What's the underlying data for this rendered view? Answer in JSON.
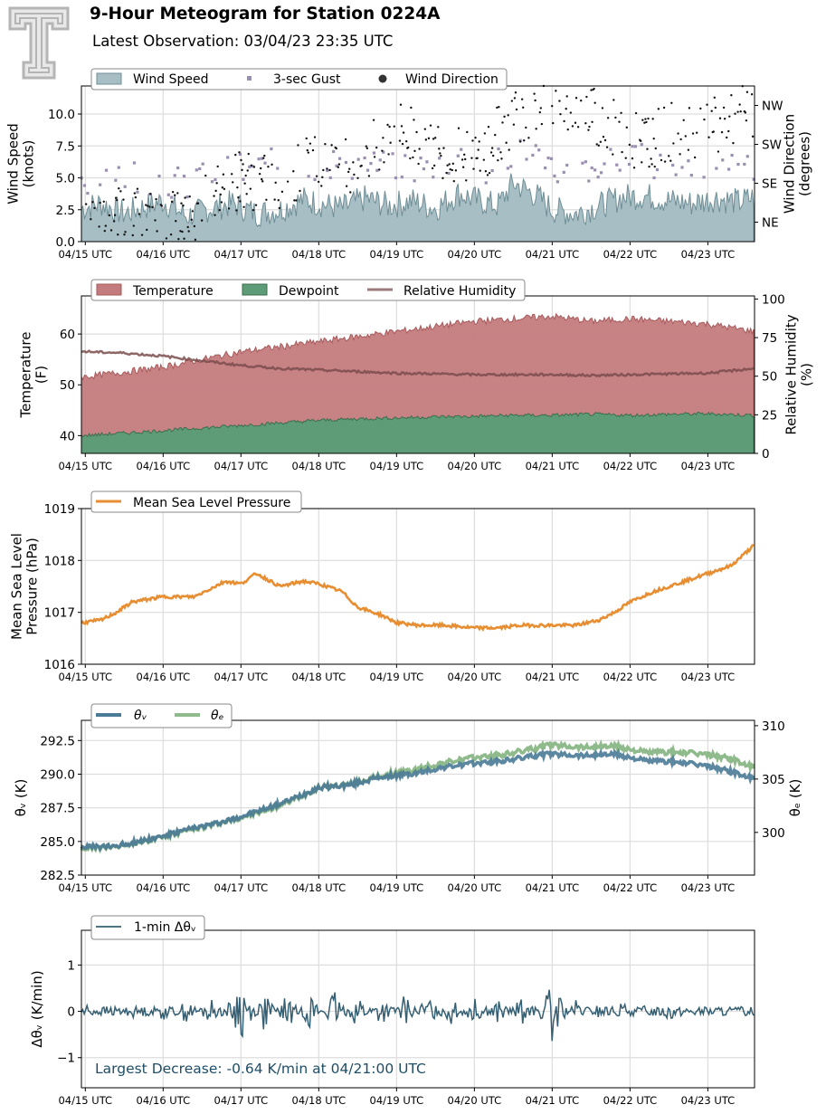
{
  "title": "9-Hour Meteogram for Station 0224A",
  "subtitle": "Latest Observation: 03/04/23 23:35 UTC",
  "colors": {
    "wind_fill": "#a7bec4",
    "wind_line": "#6f8e96",
    "gust": "#9a8fb0",
    "direction": "#111111",
    "temperature": "#c47b7d",
    "dewpoint": "#5e9c78",
    "rh": "#7a4c4c",
    "pressure": "#e88e32",
    "theta_v": "#4a7a96",
    "theta_e": "#8fba8c",
    "dtheta": "#355f72",
    "annotation": "#1e4d66",
    "grid": "#dddddd"
  },
  "chart_data": [
    {
      "type": "area",
      "name": "wind",
      "x_ticks": [
        "04/15 UTC",
        "04/16 UTC",
        "04/17 UTC",
        "04/18 UTC",
        "04/19 UTC",
        "04/20 UTC",
        "04/21 UTC",
        "04/22 UTC",
        "04/23 UTC"
      ],
      "x_range": [
        14.95,
        23.6
      ],
      "ylabel": [
        "Wind Speed",
        "(knots)"
      ],
      "ylim": [
        0,
        12.2
      ],
      "y_ticks": [
        "0.0",
        "2.5",
        "5.0",
        "7.5",
        "10.0"
      ],
      "y_tick_values": [
        0,
        2.5,
        5,
        7.5,
        10
      ],
      "y2label": [
        "Wind Direction",
        "(degrees)"
      ],
      "y2_ticks": [
        "NE",
        "SW",
        "SE",
        "NW"
      ],
      "y2_tick_values": [
        45,
        225,
        135,
        315
      ],
      "y2lim": [
        0,
        360
      ],
      "legend": [
        "Wind Speed",
        "3-sec Gust",
        "Wind Direction"
      ],
      "series": [
        {
          "name": "Wind Speed",
          "x": [
            14.95,
            15.2,
            15.5,
            15.8,
            16.0,
            16.3,
            16.6,
            16.9,
            17.2,
            17.5,
            17.8,
            18.0,
            18.3,
            18.6,
            18.9,
            19.2,
            19.5,
            19.8,
            20.0,
            20.3,
            20.5,
            20.8,
            21.0,
            21.3,
            21.6,
            21.9,
            22.2,
            22.5,
            22.8,
            23.1,
            23.4,
            23.6
          ],
          "values": [
            2.6,
            3.0,
            2.2,
            2.8,
            3.2,
            2.0,
            2.6,
            3.0,
            2.2,
            2.5,
            3.3,
            3.0,
            2.6,
            3.4,
            2.8,
            3.2,
            2.6,
            3.8,
            3.3,
            2.8,
            4.6,
            3.6,
            2.5,
            2.2,
            2.8,
            3.5,
            3.6,
            3.2,
            3.0,
            3.4,
            3.1,
            3.5
          ]
        },
        {
          "name": "3-sec Gust",
          "x": [
            15.0,
            15.4,
            15.8,
            16.2,
            16.6,
            17.0,
            17.4,
            17.8,
            18.2,
            18.6,
            19.0,
            19.4,
            19.8,
            20.2,
            20.6,
            21.0,
            21.4,
            21.8,
            22.2,
            22.6,
            23.0,
            23.4
          ],
          "values": [
            4.8,
            5.5,
            5.0,
            4.6,
            5.2,
            5.6,
            6.0,
            5.4,
            6.2,
            6.0,
            5.6,
            5.8,
            6.6,
            5.8,
            7.6,
            6.0,
            5.6,
            6.2,
            6.4,
            5.8,
            6.0,
            5.6
          ]
        },
        {
          "name": "Wind Direction",
          "x": [
            15.1,
            15.5,
            16.0,
            16.5,
            17.0,
            17.5,
            18.0,
            18.5,
            19.0,
            19.5,
            20.0,
            20.5,
            21.0,
            21.5,
            22.0,
            22.5,
            23.0,
            23.5
          ],
          "values": [
            30,
            60,
            40,
            80,
            150,
            120,
            200,
            180,
            260,
            220,
            180,
            290,
            330,
            300,
            230,
            250,
            270,
            300
          ]
        }
      ]
    },
    {
      "type": "area",
      "name": "temperature",
      "x_ticks": [
        "04/15 UTC",
        "04/16 UTC",
        "04/17 UTC",
        "04/18 UTC",
        "04/19 UTC",
        "04/20 UTC",
        "04/21 UTC",
        "04/22 UTC",
        "04/23 UTC"
      ],
      "x_range": [
        14.95,
        23.6
      ],
      "ylabel": [
        "Temperature",
        "(F)"
      ],
      "ylim": [
        36.5,
        67.5
      ],
      "y_ticks": [
        "40",
        "50",
        "60"
      ],
      "y_tick_values": [
        40,
        50,
        60
      ],
      "y2label": [
        "Relative Humidity",
        "(%)"
      ],
      "y2lim": [
        0,
        102
      ],
      "y2_ticks": [
        "0",
        "25",
        "50",
        "75",
        "100"
      ],
      "y2_tick_values": [
        0,
        25,
        50,
        75,
        100
      ],
      "legend": [
        "Temperature",
        "Dewpoint",
        "Relative Humidity"
      ],
      "series": [
        {
          "name": "Temperature",
          "x": [
            14.95,
            15.5,
            16.0,
            16.5,
            17.0,
            17.5,
            18.0,
            18.5,
            19.0,
            19.5,
            20.0,
            20.5,
            21.0,
            21.5,
            22.0,
            22.5,
            23.0,
            23.6
          ],
          "values": [
            51.5,
            52.5,
            53.5,
            55.0,
            56.5,
            57.5,
            58.5,
            59.5,
            60.5,
            61.5,
            62.5,
            63.0,
            63.5,
            62.5,
            63.0,
            62.5,
            62.0,
            60.5
          ]
        },
        {
          "name": "Dewpoint",
          "x": [
            14.95,
            15.5,
            16.0,
            16.5,
            17.0,
            17.5,
            18.0,
            18.5,
            19.0,
            19.5,
            20.0,
            20.5,
            21.0,
            21.5,
            22.0,
            22.5,
            23.0,
            23.6
          ],
          "values": [
            40.0,
            40.5,
            41.0,
            41.5,
            42.0,
            42.5,
            43.0,
            43.3,
            43.5,
            43.7,
            43.8,
            44.0,
            44.0,
            44.2,
            44.0,
            44.2,
            44.3,
            44.0
          ]
        },
        {
          "name": "Relative Humidity",
          "x": [
            14.95,
            15.5,
            16.0,
            16.5,
            17.0,
            17.5,
            18.0,
            18.5,
            19.0,
            19.5,
            20.0,
            20.5,
            21.0,
            21.5,
            22.0,
            22.5,
            23.0,
            23.6
          ],
          "values": [
            66,
            65,
            63,
            60,
            57,
            55,
            54,
            53,
            52,
            51.5,
            51,
            51,
            51,
            50.5,
            51,
            51.5,
            52,
            55
          ]
        }
      ]
    },
    {
      "type": "line",
      "name": "pressure",
      "x_ticks": [
        "04/15 UTC",
        "04/16 UTC",
        "04/17 UTC",
        "04/18 UTC",
        "04/19 UTC",
        "04/20 UTC",
        "04/21 UTC",
        "04/22 UTC",
        "04/23 UTC"
      ],
      "x_range": [
        14.95,
        23.6
      ],
      "ylabel": [
        "Mean Sea Level",
        "Pressure (hPa)"
      ],
      "ylim": [
        1016,
        1019
      ],
      "y_ticks": [
        "1016",
        "1017",
        "1018",
        "1019"
      ],
      "y_tick_values": [
        1016,
        1017,
        1018,
        1019
      ],
      "legend": [
        "Mean Sea Level Pressure"
      ],
      "series": [
        {
          "name": "Mean Sea Level Pressure",
          "x": [
            14.95,
            15.2,
            15.4,
            15.6,
            16.0,
            16.4,
            16.8,
            17.0,
            17.2,
            17.5,
            17.8,
            18.0,
            18.3,
            18.5,
            18.8,
            19.0,
            19.3,
            19.6,
            20.0,
            20.3,
            20.6,
            21.0,
            21.3,
            21.6,
            21.8,
            22.0,
            22.3,
            22.6,
            23.0,
            23.3,
            23.6
          ],
          "values": [
            1016.8,
            1016.85,
            1017.0,
            1017.2,
            1017.3,
            1017.3,
            1017.6,
            1017.55,
            1017.75,
            1017.5,
            1017.6,
            1017.55,
            1017.4,
            1017.1,
            1016.95,
            1016.8,
            1016.75,
            1016.75,
            1016.7,
            1016.7,
            1016.75,
            1016.75,
            1016.75,
            1016.85,
            1017.0,
            1017.2,
            1017.4,
            1017.55,
            1017.75,
            1017.9,
            1018.3
          ]
        }
      ]
    },
    {
      "type": "line",
      "name": "theta",
      "x_ticks": [
        "04/15 UTC",
        "04/16 UTC",
        "04/17 UTC",
        "04/18 UTC",
        "04/19 UTC",
        "04/20 UTC",
        "04/21 UTC",
        "04/22 UTC",
        "04/23 UTC"
      ],
      "x_range": [
        14.95,
        23.6
      ],
      "ylabel": [
        "θᵥ (K)"
      ],
      "ylim": [
        282.5,
        294.0
      ],
      "y_ticks": [
        "282.5",
        "285.0",
        "287.5",
        "290.0",
        "292.5"
      ],
      "y_tick_values": [
        282.5,
        285.0,
        287.5,
        290.0,
        292.5
      ],
      "y2label": [
        "θₑ (K)"
      ],
      "y2lim": [
        296.0,
        310.5
      ],
      "y2_ticks": [
        "300",
        "305",
        "310"
      ],
      "y2_tick_values": [
        300,
        305,
        310
      ],
      "legend": [
        "θᵥ",
        "θₑ"
      ],
      "series": [
        {
          "name": "θᵥ",
          "x": [
            14.95,
            15.3,
            15.6,
            16.0,
            16.4,
            16.8,
            17.2,
            17.6,
            18.0,
            18.4,
            18.8,
            19.2,
            19.6,
            20.0,
            20.4,
            20.8,
            21.0,
            21.4,
            21.8,
            22.2,
            22.6,
            23.0,
            23.3,
            23.6
          ],
          "values": [
            284.6,
            284.6,
            284.9,
            285.4,
            286.0,
            286.5,
            287.2,
            288.0,
            289.0,
            289.2,
            289.8,
            290.0,
            290.5,
            290.8,
            291.0,
            291.4,
            291.5,
            291.4,
            291.5,
            291.0,
            290.9,
            290.6,
            290.2,
            289.6
          ]
        },
        {
          "name": "θₑ",
          "x": [
            14.95,
            15.3,
            15.6,
            16.0,
            16.4,
            16.8,
            17.2,
            17.6,
            18.0,
            18.4,
            18.8,
            19.2,
            19.6,
            20.0,
            20.4,
            20.8,
            21.0,
            21.4,
            21.8,
            22.2,
            22.6,
            23.0,
            23.3,
            23.6
          ],
          "values": [
            298.5,
            298.6,
            299.0,
            299.6,
            300.3,
            301.0,
            301.8,
            302.8,
            304.2,
            304.5,
            305.3,
            305.8,
            306.5,
            307.0,
            307.3,
            307.9,
            308.2,
            308.0,
            308.1,
            307.5,
            307.5,
            307.3,
            306.9,
            306.0
          ]
        }
      ]
    },
    {
      "type": "line",
      "name": "dtheta",
      "x_ticks": [
        "04/15 UTC",
        "04/16 UTC",
        "04/17 UTC",
        "04/18 UTC",
        "04/19 UTC",
        "04/20 UTC",
        "04/21 UTC",
        "04/22 UTC",
        "04/23 UTC"
      ],
      "x_range": [
        14.95,
        23.6
      ],
      "ylabel": [
        "Δθᵥ (K/min)"
      ],
      "ylim": [
        -1.65,
        1.75
      ],
      "y_ticks": [
        "−1",
        "0",
        "1"
      ],
      "y_tick_values": [
        -1,
        0,
        1
      ],
      "legend": [
        "1-min Δθᵥ"
      ],
      "annotation": "Largest Decrease: -0.64 K/min at 04/21:00 UTC",
      "series": [
        {
          "name": "1-min Δθᵥ",
          "x": [
            14.95,
            15.0,
            15.3,
            15.6,
            16.0,
            16.3,
            16.6,
            16.9,
            17.0,
            17.3,
            17.6,
            17.9,
            18.2,
            18.5,
            18.8,
            19.1,
            19.4,
            19.7,
            20.0,
            20.3,
            20.6,
            20.9,
            21.0,
            21.3,
            21.6,
            21.9,
            22.2,
            22.5,
            22.8,
            23.1,
            23.4,
            23.6
          ],
          "values": [
            0.0,
            0.2,
            -0.15,
            0.15,
            -0.2,
            0.25,
            -0.3,
            0.3,
            0.7,
            -0.45,
            0.4,
            -0.4,
            0.45,
            -0.4,
            0.35,
            -0.35,
            0.35,
            -0.3,
            0.3,
            -0.3,
            0.3,
            -0.25,
            -0.64,
            0.25,
            -0.2,
            0.2,
            -0.15,
            0.2,
            -0.1,
            0.1,
            -0.05,
            0.0
          ]
        }
      ]
    }
  ]
}
